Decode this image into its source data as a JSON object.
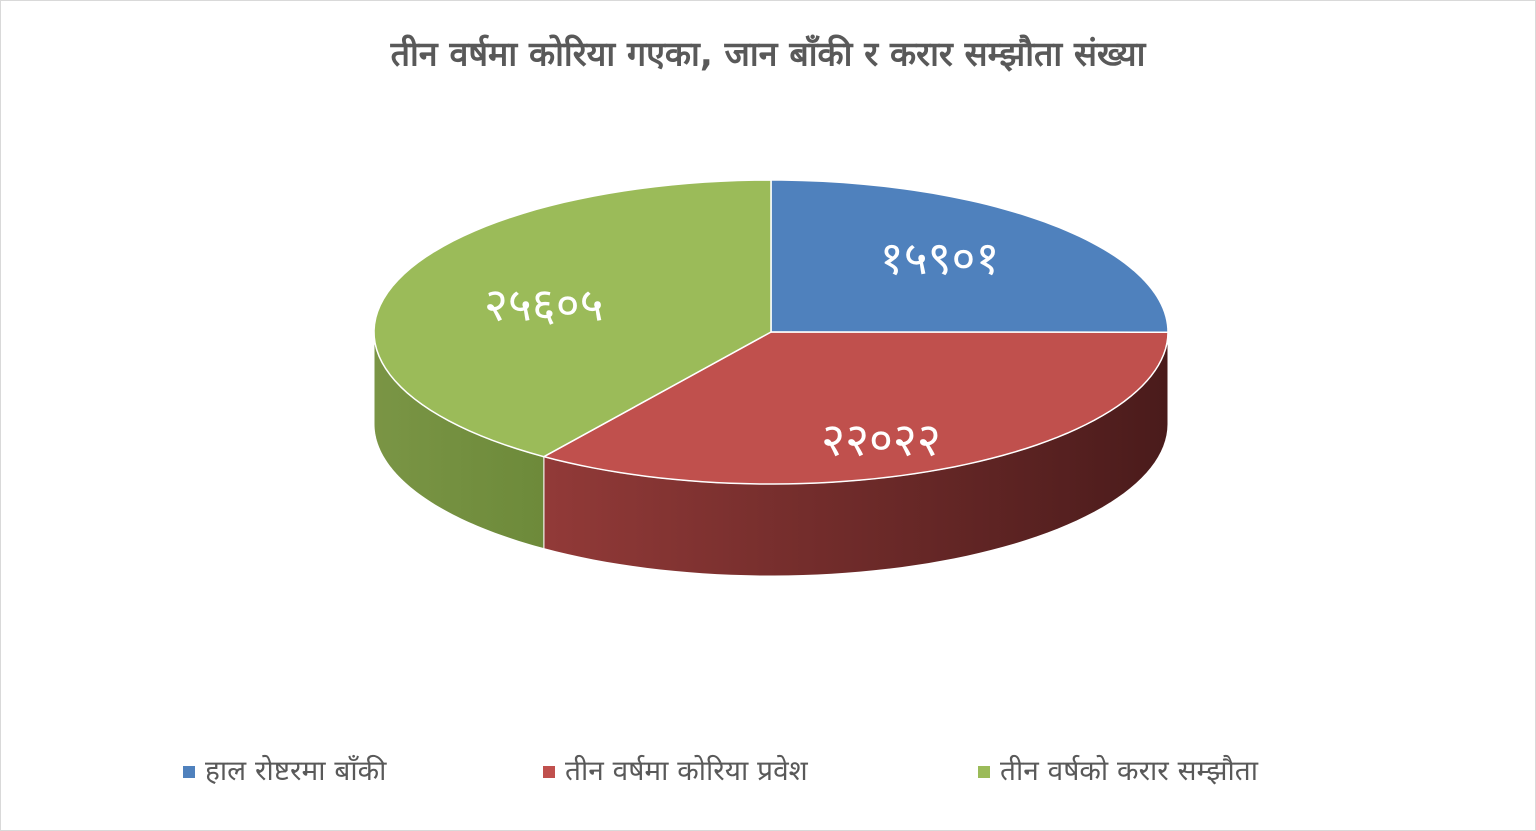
{
  "chart_data": {
    "type": "pie3d",
    "title": "तीन वर्षमा कोरिया गएका, जान बाँकी र करार सम्झौता संख्या",
    "categories": [
      "हाल रोष्टरमा बाँकी",
      "तीन वर्षमा कोरिया प्रवेश",
      "तीन वर्षको करार सम्झौता"
    ],
    "values": [
      15901,
      22022,
      25605
    ],
    "value_labels": [
      "१५९०१",
      "२२०२२",
      "२५६०५"
    ],
    "colors": [
      "#4f81bd",
      "#c0504d",
      "#9bbb59"
    ],
    "legend": "bottom"
  }
}
